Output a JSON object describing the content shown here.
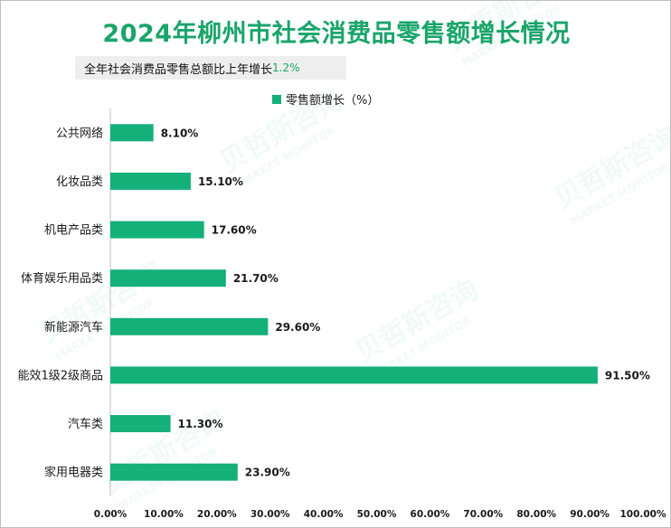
{
  "page": {
    "title": "2024年柳州市社会消费品零售额增长情况",
    "subtitle_text": "全年社会消费品零售总额比上年增长",
    "subtitle_value": "1.2%",
    "watermark_cn": "贝哲斯咨询",
    "watermark_en": "MARKET MONITOR"
  },
  "colors": {
    "bar": "#13b07a",
    "title": "#1aa56a",
    "axis": "#bfbfbf",
    "text": "#1a1a1a"
  },
  "chart_data": {
    "type": "bar",
    "orientation": "horizontal",
    "title": "2024年柳州市社会消费品零售额增长情况",
    "legend": [
      "零售额增长（%）"
    ],
    "legend_position": "top",
    "categories": [
      "公共网络",
      "化妆品类",
      "机电产品类",
      "体育娱乐用品类",
      "新能源汽车",
      "能效1级2级商品",
      "汽车类",
      "家用电器类"
    ],
    "series": [
      {
        "name": "零售额增长（%）",
        "values": [
          8.1,
          15.1,
          17.6,
          21.7,
          29.6,
          91.5,
          11.3,
          23.9
        ],
        "labels": [
          "8.10%",
          "15.10%",
          "17.60%",
          "21.70%",
          "29.60%",
          "91.50%",
          "11.30%",
          "23.90%"
        ]
      }
    ],
    "xlim": [
      0,
      100
    ],
    "x_ticks": [
      "0.00%",
      "10.00%",
      "20.00%",
      "30.00%",
      "40.00%",
      "50.00%",
      "60.00%",
      "70.00%",
      "80.00%",
      "90.00%",
      "100.00%"
    ],
    "grid": false
  }
}
